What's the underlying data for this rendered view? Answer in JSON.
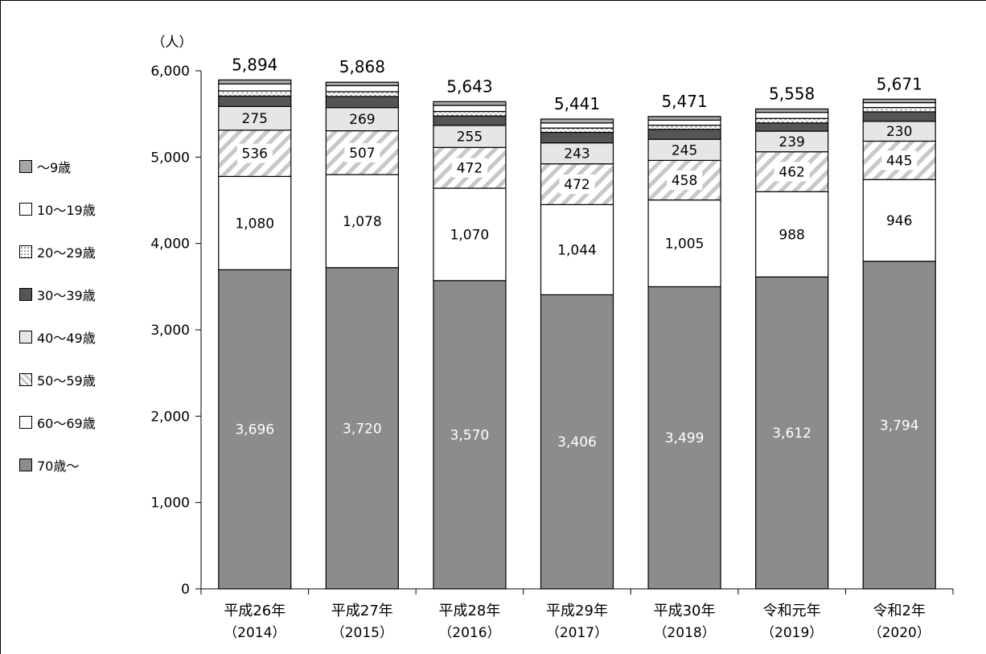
{
  "chart_data": {
    "type": "bar",
    "stacked": true,
    "unit_label": "（人）",
    "title": "",
    "xlabel": "",
    "ylabel": "",
    "ylim": [
      0,
      6000
    ],
    "yticks": [
      0,
      1000,
      2000,
      3000,
      4000,
      5000,
      6000
    ],
    "ytick_labels": [
      "0",
      "1,000",
      "2,000",
      "3,000",
      "4,000",
      "5,000",
      "6,000"
    ],
    "categories": [
      {
        "line1": "平成26年",
        "line2": "（2014）"
      },
      {
        "line1": "平成27年",
        "line2": "（2015）"
      },
      {
        "line1": "平成28年",
        "line2": "（2016）"
      },
      {
        "line1": "平成29年",
        "line2": "（2017）"
      },
      {
        "line1": "平成30年",
        "line2": "（2018）"
      },
      {
        "line1": "令和元年",
        "line2": "（2019）"
      },
      {
        "line1": "令和2年",
        "line2": "（2020）"
      }
    ],
    "totals": [
      5894,
      5868,
      5643,
      5441,
      5471,
      5558,
      5671
    ],
    "total_labels": [
      "5,894",
      "5,868",
      "5,643",
      "5,441",
      "5,471",
      "5,558",
      "5,671"
    ],
    "series": [
      {
        "name": "70歳～",
        "fill": "#8c8c8c",
        "pattern": "solid",
        "label_color": "#ffffff",
        "show_labels": true,
        "values": [
          3696,
          3720,
          3570,
          3406,
          3499,
          3612,
          3794
        ],
        "labels": [
          "3,696",
          "3,720",
          "3,570",
          "3,406",
          "3,499",
          "3,612",
          "3,794"
        ]
      },
      {
        "name": "60～69歳",
        "fill": "#ffffff",
        "pattern": "solid",
        "label_color": "#000000",
        "show_labels": true,
        "values": [
          1080,
          1078,
          1070,
          1044,
          1005,
          988,
          946
        ],
        "labels": [
          "1,080",
          "1,078",
          "1,070",
          "1,044",
          "1,005",
          "988",
          "946"
        ]
      },
      {
        "name": "50～59歳",
        "fill": "#ffffff",
        "pattern": "hatch",
        "label_color": "#000000",
        "show_labels": true,
        "values": [
          536,
          507,
          472,
          472,
          458,
          462,
          445
        ],
        "labels": [
          "536",
          "507",
          "472",
          "472",
          "458",
          "462",
          "445"
        ]
      },
      {
        "name": "40～49歳",
        "fill": "#e6e6e6",
        "pattern": "solid",
        "label_color": "#000000",
        "show_labels": true,
        "values": [
          275,
          269,
          255,
          243,
          245,
          239,
          230
        ],
        "labels": [
          "275",
          "269",
          "255",
          "243",
          "245",
          "239",
          "230"
        ]
      },
      {
        "name": "30～39歳",
        "fill": "#555555",
        "pattern": "solid",
        "label_color": "#000000",
        "show_labels": false,
        "values": [
          120,
          128,
          110,
          122,
          115,
          95,
          110
        ]
      },
      {
        "name": "20～29歳",
        "fill": "#ffffff",
        "pattern": "dots",
        "label_color": "#000000",
        "show_labels": false,
        "values": [
          60,
          56,
          52,
          50,
          48,
          52,
          50
        ]
      },
      {
        "name": "10～19歳",
        "fill": "#ffffff",
        "pattern": "solid",
        "label_color": "#000000",
        "show_labels": false,
        "values": [
          80,
          70,
          70,
          58,
          58,
          70,
          56
        ]
      },
      {
        "name": "～9歳",
        "fill": "#a6a6a6",
        "pattern": "solid",
        "label_color": "#000000",
        "show_labels": false,
        "values": [
          47,
          40,
          44,
          46,
          43,
          40,
          40
        ]
      }
    ],
    "legend": {
      "placement": "left",
      "order": [
        "～9歳",
        "10～19歳",
        "20～29歳",
        "30～39歳",
        "40～49歳",
        "50～59歳",
        "60～69歳",
        "70歳～"
      ]
    },
    "grid": false
  }
}
